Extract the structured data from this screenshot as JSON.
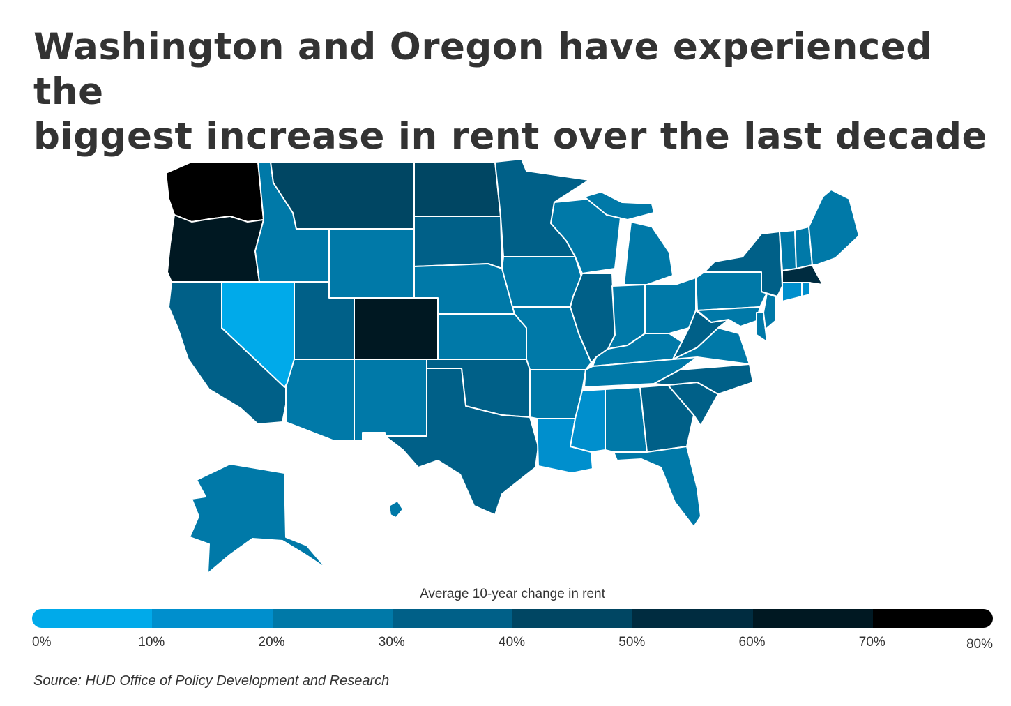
{
  "title_lines": [
    "Washington and Oregon have experienced the",
    "biggest increase in rent over the last decade"
  ],
  "legend": {
    "title": "Average 10-year change in rent",
    "ticks": [
      "0%",
      "10%",
      "20%",
      "30%",
      "40%",
      "50%",
      "60%",
      "70%",
      "80%"
    ],
    "colors": [
      "#00aaea",
      "#008fcd",
      "#0079a8",
      "#006088",
      "#004663",
      "#002c40",
      "#001822",
      "#000000"
    ]
  },
  "source": "Source: HUD Office of Policy Development and Research",
  "colors": {
    "c1": "#00aaea",
    "c2": "#008fcd",
    "c3": "#0079a8",
    "c4": "#006088",
    "c5": "#004663",
    "c6": "#002c40",
    "c7": "#001822",
    "c8": "#000000",
    "border": "#ffffff",
    "text": "#333333"
  }
}
